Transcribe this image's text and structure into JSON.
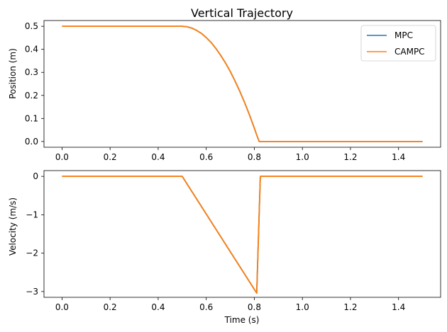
{
  "chart_data": [
    {
      "type": "line",
      "title": "Vertical Trajectory",
      "xlabel": "",
      "ylabel": "Position (m)",
      "xlim": [
        -0.075,
        1.575
      ],
      "ylim": [
        -0.025,
        0.525
      ],
      "xticks": [
        0.0,
        0.2,
        0.4,
        0.6,
        0.8,
        1.0,
        1.2,
        1.4
      ],
      "yticks": [
        0.0,
        0.1,
        0.2,
        0.3,
        0.4,
        0.5
      ],
      "xtick_labels": [
        "0.0",
        "0.2",
        "0.4",
        "0.6",
        "0.8",
        "1.0",
        "1.2",
        "1.4"
      ],
      "ytick_labels": [
        "0.0",
        "0.1",
        "0.2",
        "0.3",
        "0.4",
        "0.5"
      ],
      "grid": false,
      "legend": {
        "placement": "upper-right",
        "entries": [
          "MPC",
          "CAMPC"
        ]
      },
      "series": [
        {
          "name": "MPC",
          "color": "#1f77b4",
          "x": [
            0.0,
            0.5,
            0.52,
            0.54,
            0.56,
            0.58,
            0.6,
            0.62,
            0.64,
            0.66,
            0.68,
            0.7,
            0.72,
            0.74,
            0.76,
            0.78,
            0.8,
            0.81,
            0.82,
            1.5
          ],
          "y": [
            0.5,
            0.5,
            0.498,
            0.492,
            0.482,
            0.469,
            0.451,
            0.43,
            0.404,
            0.374,
            0.341,
            0.304,
            0.262,
            0.217,
            0.168,
            0.115,
            0.058,
            0.028,
            0.0,
            0.0
          ]
        },
        {
          "name": "CAMPC",
          "color": "#ff7f0e",
          "x": [
            0.0,
            0.5,
            0.52,
            0.54,
            0.56,
            0.58,
            0.6,
            0.62,
            0.64,
            0.66,
            0.68,
            0.7,
            0.72,
            0.74,
            0.76,
            0.78,
            0.8,
            0.81,
            0.82,
            1.5
          ],
          "y": [
            0.5,
            0.5,
            0.498,
            0.492,
            0.482,
            0.469,
            0.451,
            0.43,
            0.404,
            0.374,
            0.341,
            0.304,
            0.262,
            0.217,
            0.168,
            0.115,
            0.058,
            0.028,
            0.0,
            0.0
          ]
        }
      ]
    },
    {
      "type": "line",
      "title": "",
      "xlabel": "Time (s)",
      "ylabel": "Velocity (m/s)",
      "xlim": [
        -0.075,
        1.575
      ],
      "ylim": [
        -3.15,
        0.15
      ],
      "xticks": [
        0.0,
        0.2,
        0.4,
        0.6,
        0.8,
        1.0,
        1.2,
        1.4
      ],
      "yticks": [
        0,
        -1,
        -2,
        -3
      ],
      "xtick_labels": [
        "0.0",
        "0.2",
        "0.4",
        "0.6",
        "0.8",
        "1.0",
        "1.2",
        "1.4"
      ],
      "ytick_labels": [
        "0",
        "−1",
        "−2",
        "−3"
      ],
      "grid": false,
      "series": [
        {
          "name": "MPC",
          "color": "#1f77b4",
          "x": [
            0.0,
            0.5,
            0.81,
            0.825,
            1.5
          ],
          "y": [
            0.0,
            0.0,
            -3.04,
            0.0,
            0.0
          ]
        },
        {
          "name": "CAMPC",
          "color": "#ff7f0e",
          "x": [
            0.0,
            0.5,
            0.81,
            0.825,
            1.5
          ],
          "y": [
            0.0,
            0.0,
            -3.04,
            0.0,
            0.0
          ]
        }
      ]
    }
  ]
}
